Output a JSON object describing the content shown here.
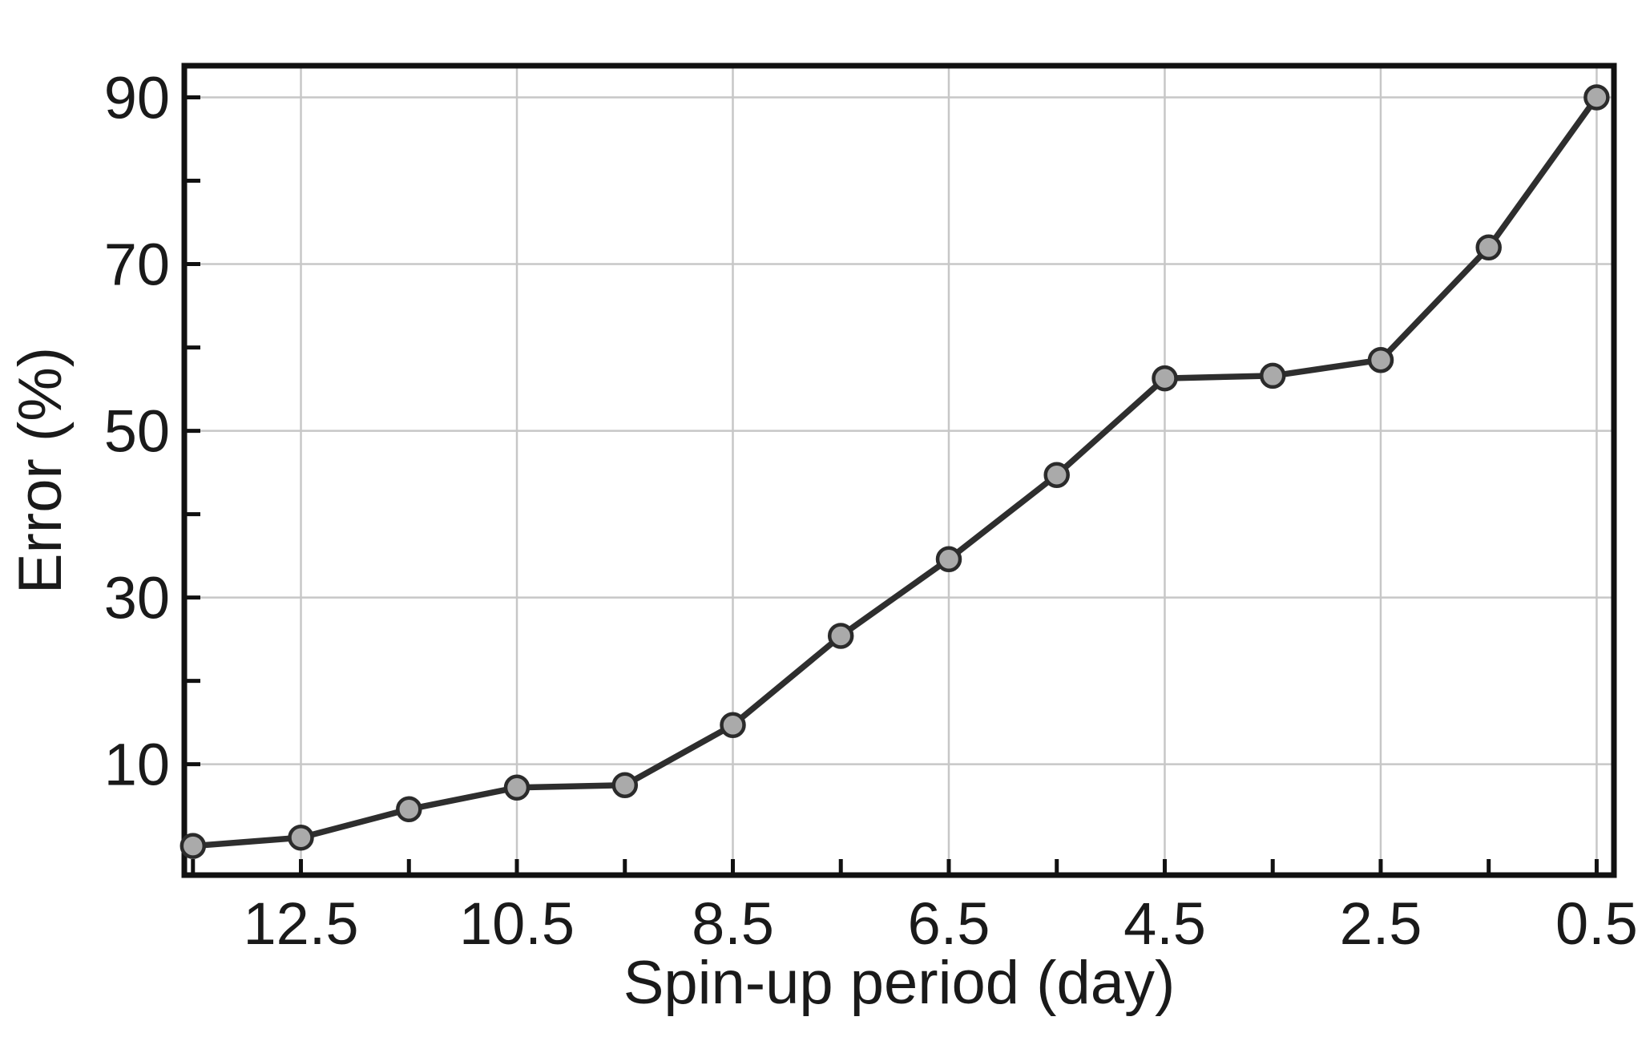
{
  "chart_data": {
    "type": "line",
    "title": "",
    "xlabel": "Spin-up period (day)",
    "ylabel": "Error (%)",
    "series": [
      {
        "name": "Error",
        "x": [
          13.5,
          12.5,
          11.5,
          10.5,
          9.5,
          8.5,
          7.5,
          6.5,
          5.5,
          4.5,
          3.5,
          2.5,
          1.5,
          0.5
        ],
        "values": [
          0.2,
          1.2,
          4.6,
          7.2,
          7.5,
          14.7,
          25.4,
          34.6,
          44.7,
          56.3,
          56.6,
          58.5,
          72.0,
          90.0
        ]
      }
    ],
    "x_axis": {
      "tick_labels": [
        "12.5",
        "10.5",
        "8.5",
        "6.5",
        "4.5",
        "2.5",
        "0.5"
      ],
      "tick_values": [
        12.5,
        10.5,
        8.5,
        6.5,
        4.5,
        2.5,
        0.5
      ],
      "minor_tick_values": [
        13.5,
        11.5,
        9.5,
        7.5,
        5.5,
        3.5,
        1.5
      ],
      "reversed": true,
      "range": [
        13.58,
        0.34
      ]
    },
    "y_axis": {
      "tick_labels": [
        "10",
        "30",
        "50",
        "70",
        "90"
      ],
      "tick_values": [
        10,
        30,
        50,
        70,
        90
      ],
      "minor_tick_values": [
        20,
        40,
        60,
        80
      ],
      "range": [
        -3.3,
        93.8
      ]
    },
    "grid": true,
    "legend": "none",
    "marker": "circle",
    "colors": {
      "background": "#ffffff",
      "line": "#2e2e2e",
      "marker_fill": "#aaaaaa",
      "marker_edge": "#2b2b2b",
      "gridline": "#c7c7c7",
      "axis": "#111111",
      "text": "#1a1a1a"
    }
  }
}
